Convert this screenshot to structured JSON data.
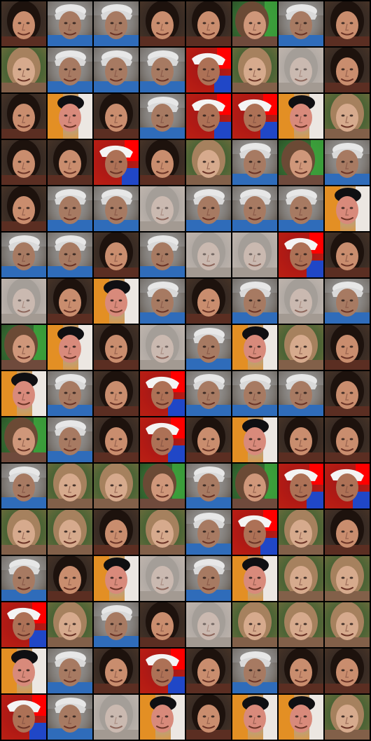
{
  "image": {
    "kind": "generated face sample grid",
    "columns": 8,
    "rows": 16,
    "tile_count": 128
  },
  "palette": {
    "brunette_woman": {
      "bg": "#4a3527",
      "hair": "#1d120d",
      "skin": "#c98d6e",
      "shirt": "#5b2e22",
      "accent": "#231816"
    },
    "blonde_woman": {
      "bg": "#6d6a3c",
      "hair": "#a6815e",
      "skin": "#d6aa8d",
      "shirt": "#826049",
      "accent": "#2e7d2e"
    },
    "hat_man": {
      "bg": "#4b4036",
      "hair": "#ececec",
      "skin": "#a77a62",
      "shirt": "#2f6cba",
      "accent": "#ffffff"
    },
    "orange_man": {
      "bg": "#e38f24",
      "hair": "#0f0f12",
      "skin": "#d88a7b",
      "shirt": "#1b1b22",
      "accent": "#ffffff"
    },
    "red_hat_man": {
      "bg": "#b72014",
      "hair": "#f4f4f4",
      "skin": "#ad7156",
      "shirt": "#2047c7",
      "accent": "#ff0000"
    },
    "gray_face": {
      "bg": "#b8aaa0",
      "hair": "#8e8781",
      "skin": "#c8b1a6",
      "shirt": "#8d8179",
      "accent": "#d8d0cc"
    },
    "green_woman": {
      "bg": "#2b4e26",
      "hair": "#6b4a35",
      "skin": "#cf977a",
      "shirt": "#6f4a3c",
      "accent": "#3fb43f"
    }
  },
  "grid": [
    [
      "brunette_woman",
      "hat_man",
      "hat_man",
      "brunette_woman",
      "brunette_woman",
      "green_woman",
      "hat_man",
      "brunette_woman"
    ],
    [
      "blonde_woman",
      "hat_man",
      "hat_man",
      "hat_man",
      "red_hat_man",
      "blonde_woman",
      "gray_face",
      "brunette_woman"
    ],
    [
      "brunette_woman",
      "orange_man",
      "brunette_woman",
      "hat_man",
      "red_hat_man",
      "red_hat_man",
      "orange_man",
      "blonde_woman"
    ],
    [
      "brunette_woman",
      "brunette_woman",
      "red_hat_man",
      "brunette_woman",
      "blonde_woman",
      "hat_man",
      "green_woman",
      "hat_man"
    ],
    [
      "brunette_woman",
      "hat_man",
      "hat_man",
      "gray_face",
      "hat_man",
      "hat_man",
      "hat_man",
      "orange_man"
    ],
    [
      "hat_man",
      "hat_man",
      "brunette_woman",
      "hat_man",
      "gray_face",
      "gray_face",
      "red_hat_man",
      "brunette_woman"
    ],
    [
      "gray_face",
      "brunette_woman",
      "orange_man",
      "hat_man",
      "brunette_woman",
      "hat_man",
      "gray_face",
      "hat_man"
    ],
    [
      "green_woman",
      "orange_man",
      "brunette_woman",
      "gray_face",
      "hat_man",
      "orange_man",
      "blonde_woman",
      "brunette_woman"
    ],
    [
      "orange_man",
      "hat_man",
      "brunette_woman",
      "red_hat_man",
      "hat_man",
      "hat_man",
      "hat_man",
      "brunette_woman"
    ],
    [
      "green_woman",
      "hat_man",
      "brunette_woman",
      "red_hat_man",
      "brunette_woman",
      "orange_man",
      "brunette_woman",
      "brunette_woman"
    ],
    [
      "hat_man",
      "blonde_woman",
      "blonde_woman",
      "green_woman",
      "hat_man",
      "green_woman",
      "red_hat_man",
      "red_hat_man"
    ],
    [
      "blonde_woman",
      "blonde_woman",
      "brunette_woman",
      "blonde_woman",
      "hat_man",
      "red_hat_man",
      "blonde_woman",
      "brunette_woman"
    ],
    [
      "hat_man",
      "brunette_woman",
      "orange_man",
      "gray_face",
      "hat_man",
      "orange_man",
      "blonde_woman",
      "blonde_woman"
    ],
    [
      "red_hat_man",
      "blonde_woman",
      "hat_man",
      "brunette_woman",
      "gray_face",
      "blonde_woman",
      "blonde_woman",
      "blonde_woman"
    ],
    [
      "orange_man",
      "hat_man",
      "brunette_woman",
      "red_hat_man",
      "brunette_woman",
      "hat_man",
      "brunette_woman",
      "brunette_woman"
    ],
    [
      "red_hat_man",
      "hat_man",
      "gray_face",
      "orange_man",
      "brunette_woman",
      "orange_man",
      "orange_man",
      "blonde_woman"
    ]
  ]
}
